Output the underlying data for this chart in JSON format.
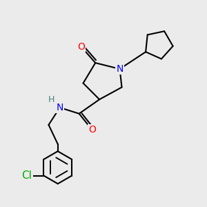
{
  "bg_color": "#ebebeb",
  "atom_colors": {
    "C": "#000000",
    "N": "#0000ff",
    "O": "#ff0000",
    "Cl": "#00aa00",
    "H": "#408080"
  },
  "bond_color": "#000000",
  "bond_width": 1.5,
  "font_size_atom": 10,
  "font_size_H": 9,
  "figsize": [
    3.0,
    3.0
  ],
  "dpi": 100
}
